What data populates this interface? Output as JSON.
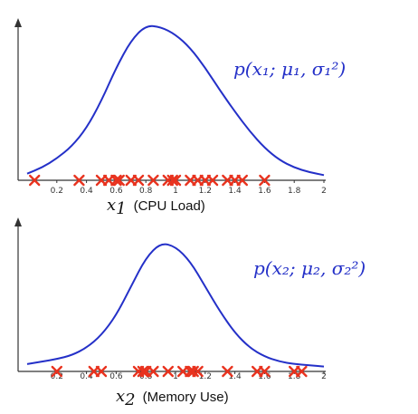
{
  "colors": {
    "curve": "#2430c8",
    "marker": "#e8321e",
    "axis": "#333333",
    "annotation": "#2430c8"
  },
  "chart_data": [
    {
      "type": "line",
      "xlabel": "x1 (CPU Load)",
      "xlabel_math": "x",
      "xlabel_sub": "1",
      "xlabel_text": "(CPU Load)",
      "annotation": "p(x₁; μ₁, σ₁²)",
      "xlim": [
        0,
        2
      ],
      "xticks": [
        "0.2",
        "0.4",
        "0.6",
        "0.8",
        "1",
        "1.2",
        "1.4",
        "1.6",
        "1.8",
        "2"
      ],
      "curve": {
        "x": [
          0.0,
          0.1,
          0.2,
          0.3,
          0.4,
          0.5,
          0.6,
          0.7,
          0.8,
          0.9,
          1.0,
          1.1,
          1.2,
          1.3,
          1.4,
          1.5,
          1.6,
          1.7,
          1.8,
          1.9,
          2.0
        ],
        "y": [
          0.02,
          0.06,
          0.12,
          0.2,
          0.32,
          0.5,
          0.72,
          0.9,
          1.0,
          0.99,
          0.94,
          0.85,
          0.72,
          0.57,
          0.43,
          0.3,
          0.19,
          0.11,
          0.06,
          0.03,
          0.01
        ]
      },
      "samples": [
        0.05,
        0.35,
        0.5,
        0.55,
        0.6,
        0.62,
        0.7,
        0.75,
        0.85,
        0.95,
        0.98,
        1.0,
        1.1,
        1.15,
        1.2,
        1.25,
        1.35,
        1.4,
        1.45,
        1.6
      ]
    },
    {
      "type": "line",
      "xlabel": "x2 (Memory Use)",
      "xlabel_math": "x",
      "xlabel_sub": "2",
      "xlabel_text": "(Memory Use)",
      "annotation": "p(x₂; μ₂, σ₂²)",
      "xlim": [
        0,
        2
      ],
      "xticks": [
        "0.2",
        "0.4",
        "0.6",
        "0.8",
        "1",
        "1.2",
        "1.4",
        "1.6",
        "1.8",
        "2"
      ],
      "curve": {
        "x": [
          0.0,
          0.1,
          0.2,
          0.3,
          0.4,
          0.5,
          0.6,
          0.7,
          0.8,
          0.9,
          1.0,
          1.1,
          1.2,
          1.3,
          1.4,
          1.5,
          1.6,
          1.7,
          1.8,
          1.9,
          2.0
        ],
        "y": [
          0.03,
          0.05,
          0.07,
          0.1,
          0.16,
          0.26,
          0.42,
          0.65,
          0.88,
          1.0,
          0.97,
          0.85,
          0.65,
          0.45,
          0.28,
          0.16,
          0.09,
          0.05,
          0.03,
          0.02,
          0.01
        ]
      },
      "samples": [
        0.2,
        0.45,
        0.5,
        0.75,
        0.78,
        0.8,
        0.85,
        0.95,
        1.05,
        1.1,
        1.12,
        1.15,
        1.35,
        1.55,
        1.6,
        1.8,
        1.85
      ]
    }
  ]
}
